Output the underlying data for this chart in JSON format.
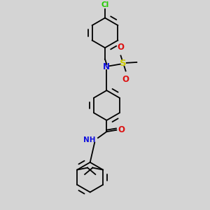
{
  "background_color": "#d4d4d4",
  "line_color": "#000000",
  "bond_lw": 1.3,
  "cl_color": "#22cc00",
  "n_color": "#1010dd",
  "o_color": "#dd1010",
  "s_color": "#cccc00",
  "figsize": [
    3.0,
    3.0
  ],
  "dpi": 100,
  "xlim": [
    0,
    10
  ],
  "ylim": [
    0,
    10
  ]
}
